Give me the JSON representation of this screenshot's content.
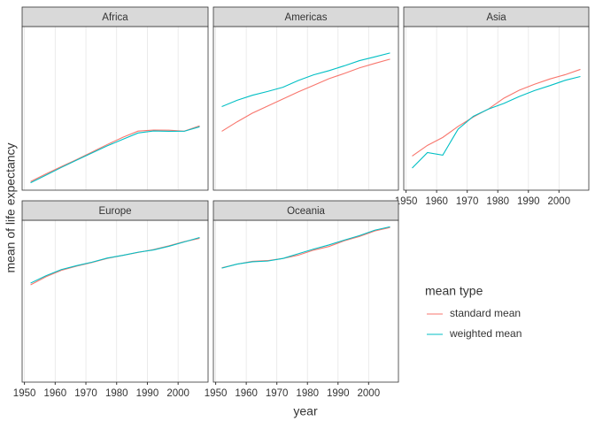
{
  "chart_data": {
    "type": "line",
    "x_label": "year",
    "y_label": "mean of life expectancy",
    "legend_title": "mean type",
    "series": [
      {
        "name": "standard mean",
        "color": "#f8766d"
      },
      {
        "name": "weighted mean",
        "color": "#00bfc4"
      }
    ],
    "x": [
      1952,
      1957,
      1962,
      1967,
      1972,
      1977,
      1982,
      1987,
      1992,
      1997,
      2002,
      2007
    ],
    "xlim": [
      1949.25,
      2009.75
    ],
    "xticks": [
      1950,
      1960,
      1970,
      1980,
      1990,
      2000
    ],
    "ylim": [
      36.7,
      82.8
    ],
    "grid": true,
    "facets": [
      {
        "title": "Africa",
        "values": [
          [
            39.14,
            41.27,
            43.32,
            45.33,
            47.45,
            49.58,
            51.59,
            53.34,
            53.63,
            53.6,
            53.33,
            54.81
          ],
          [
            38.8,
            40.94,
            43.1,
            45.18,
            47.21,
            49.21,
            51.02,
            52.82,
            53.37,
            53.28,
            53.3,
            54.56
          ]
        ]
      },
      {
        "title": "Americas",
        "values": [
          [
            53.28,
            55.96,
            58.4,
            60.41,
            62.39,
            64.39,
            66.23,
            68.09,
            69.57,
            71.15,
            72.42,
            73.61
          ],
          [
            60.24,
            62.02,
            63.44,
            64.51,
            65.7,
            67.61,
            69.19,
            70.36,
            71.72,
            73.19,
            74.25,
            75.36
          ]
        ]
      },
      {
        "title": "Asia",
        "values": [
          [
            46.31,
            49.32,
            51.56,
            54.66,
            57.32,
            59.61,
            62.62,
            64.85,
            66.54,
            68.02,
            69.23,
            70.73
          ],
          [
            42.94,
            47.29,
            46.57,
            53.88,
            57.52,
            59.57,
            61.15,
            63.08,
            64.77,
            66.15,
            67.64,
            68.72
          ]
        ]
      },
      {
        "title": "Europe",
        "values": [
          [
            64.41,
            66.7,
            68.54,
            69.74,
            70.78,
            71.94,
            72.81,
            73.64,
            74.44,
            75.51,
            76.7,
            77.65
          ],
          [
            64.9,
            67.0,
            68.76,
            69.88,
            70.87,
            72.05,
            72.8,
            73.7,
            74.34,
            75.39,
            76.63,
            77.89
          ]
        ]
      },
      {
        "title": "Oceania",
        "values": [
          [
            69.26,
            70.3,
            71.09,
            71.31,
            71.91,
            72.86,
            74.29,
            75.32,
            76.94,
            78.19,
            79.74,
            80.72
          ],
          [
            69.17,
            70.32,
            70.98,
            71.18,
            71.92,
            73.26,
            74.58,
            75.77,
            77.13,
            78.42,
            79.96,
            80.94
          ]
        ]
      }
    ]
  }
}
